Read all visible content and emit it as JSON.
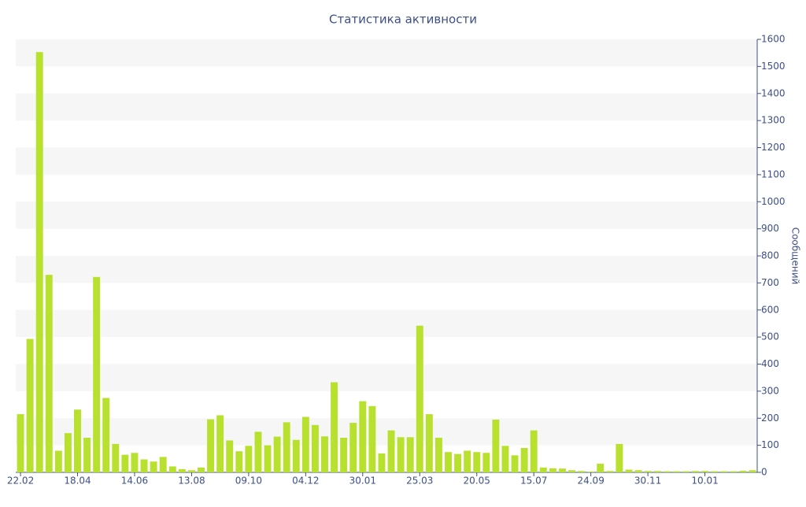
{
  "chart_data": {
    "type": "bar",
    "title": "Статистика активности",
    "y_label": "Сообщений",
    "categories": [
      "22.02",
      null,
      null,
      null,
      null,
      null,
      "18.04",
      null,
      null,
      null,
      null,
      null,
      "14.06",
      null,
      null,
      null,
      null,
      null,
      "13.08",
      null,
      null,
      null,
      null,
      null,
      "09.10",
      null,
      null,
      null,
      null,
      null,
      "04.12",
      null,
      null,
      null,
      null,
      null,
      "30.01",
      null,
      null,
      null,
      null,
      null,
      "25.03",
      null,
      null,
      null,
      null,
      null,
      "20.05",
      null,
      null,
      null,
      null,
      null,
      "15.07",
      null,
      null,
      null,
      null,
      null,
      "24.09",
      null,
      null,
      null,
      null,
      null,
      "30.11",
      null,
      null,
      null,
      null,
      null,
      "10.01",
      null,
      null,
      null,
      null,
      null
    ],
    "values": [
      215,
      493,
      1553,
      730,
      80,
      145,
      232,
      128,
      722,
      275,
      105,
      65,
      72,
      48,
      40,
      57,
      22,
      12,
      8,
      18,
      196,
      211,
      118,
      78,
      98,
      150,
      100,
      132,
      185,
      120,
      205,
      175,
      133,
      333,
      128,
      183,
      263,
      245,
      70,
      155,
      130,
      130,
      542,
      215,
      128,
      75,
      68,
      80,
      75,
      72,
      195,
      98,
      63,
      90,
      155,
      18,
      15,
      14,
      8,
      5,
      3,
      32,
      5,
      105,
      10,
      8,
      5,
      5,
      4,
      4,
      4,
      5,
      5,
      4,
      4,
      4,
      6,
      8
    ],
    "color": "#b8e02e",
    "ylim": [
      0,
      1600
    ],
    "yticks": [
      0,
      100,
      200,
      300,
      400,
      500,
      600,
      700,
      800,
      900,
      1000,
      1100,
      1200,
      1300,
      1400,
      1500,
      1600
    ],
    "y_axis_side": "right",
    "grid": true
  }
}
